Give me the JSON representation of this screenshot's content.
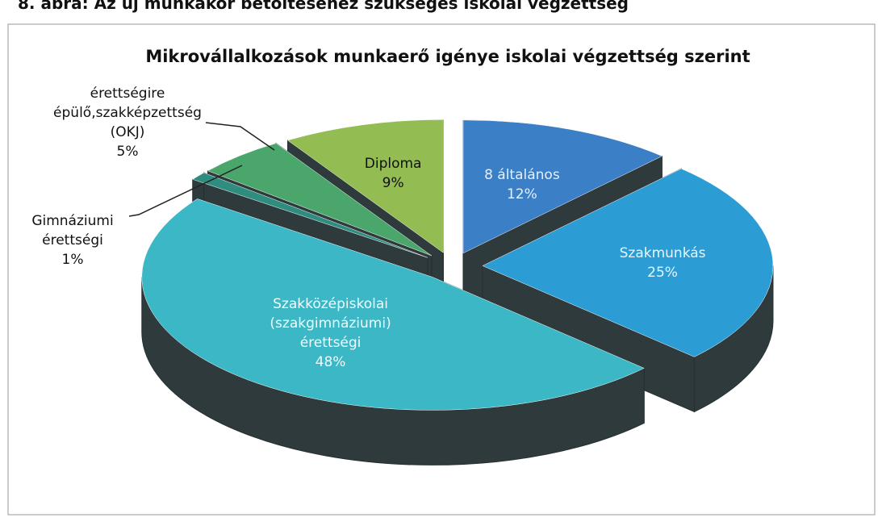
{
  "caption": "8. ábra: Az új munkakör betöltéséhez szükséges iskolai végzettség",
  "chart_data": {
    "type": "pie3d",
    "title": "Mikrovállalkozások munkaerő igénye iskolai végzettség szerint",
    "categories": [
      "8 általános",
      "Szakmunkás",
      "Szakközépiskolai (szakgimnáziumi) érettségi",
      "Gimnáziumi érettségi",
      "érettségire épülő,szakképzettség (OKJ)",
      "Diploma"
    ],
    "values": [
      12,
      25,
      48,
      1,
      5,
      9
    ],
    "value_labels": [
      "12%",
      "25%",
      "48%",
      "1%",
      "5%",
      "9%"
    ],
    "colors": [
      "#3b7fc6",
      "#2c9dd4",
      "#3bb7c6",
      "#2e8d7e",
      "#4aa66a",
      "#93bd52"
    ]
  }
}
